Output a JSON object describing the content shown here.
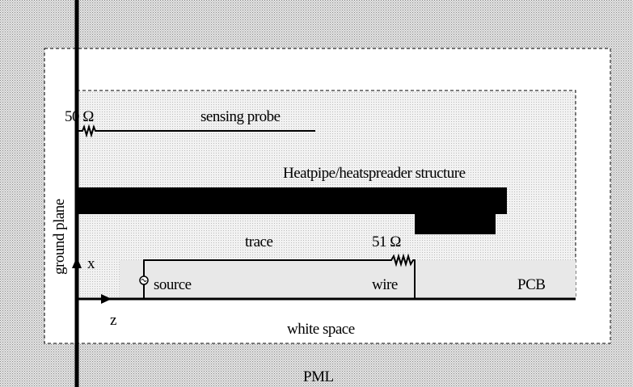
{
  "labels": {
    "pml": "PML",
    "white_space": "white space",
    "ground_plane": "ground plane",
    "probe_resistor": "50 Ω",
    "sensing_probe": "sensing probe",
    "heatpipe": "Heatpipe/heatspreader structure",
    "trace": "trace",
    "trace_resistor": "51 Ω",
    "source": "source",
    "wire": "wire",
    "pcb": "PCB",
    "x_axis": "x",
    "z_axis": "z"
  }
}
